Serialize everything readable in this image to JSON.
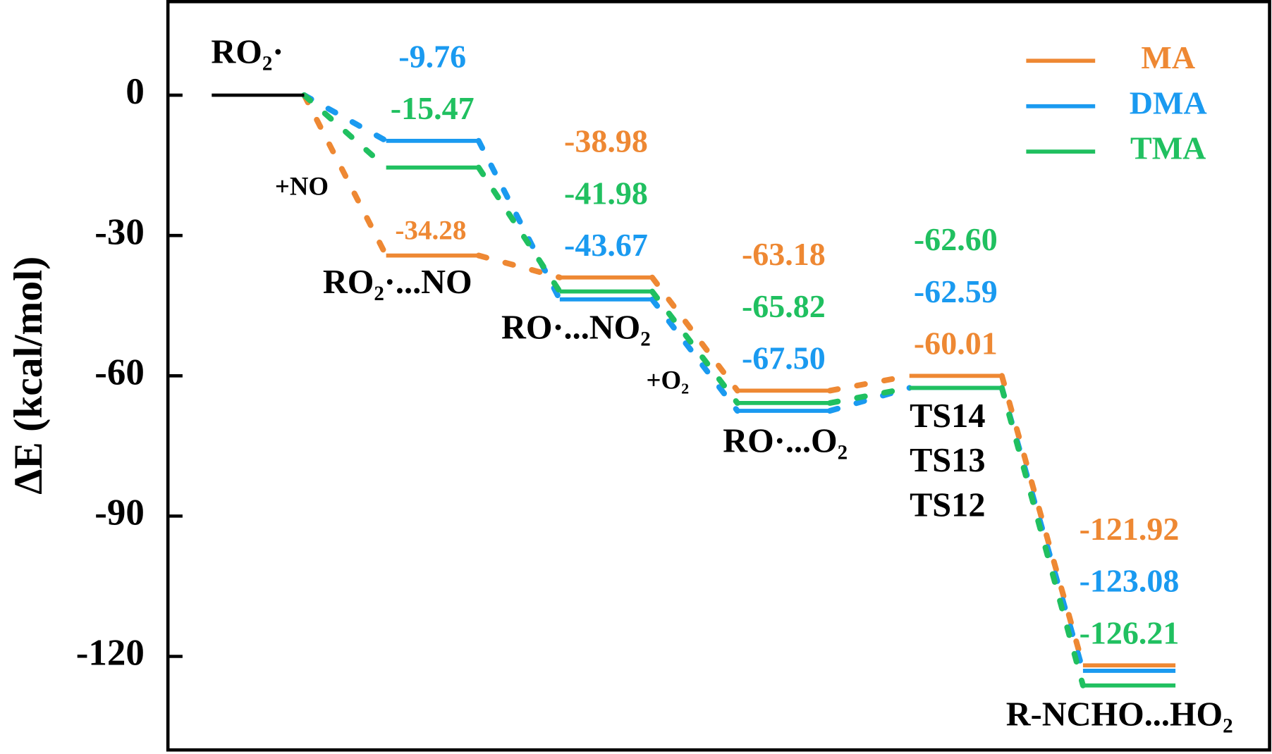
{
  "chart_data": {
    "type": "energy-diagram",
    "ylabel": "ΔE (kcal/mol)",
    "ylim": [
      -140,
      20
    ],
    "yticks": [
      0,
      -30,
      -60,
      -90,
      -120
    ],
    "categories": [
      "RO₂·",
      "RO₂·...NO",
      "RO·...NO₂",
      "RO·...O₂",
      null,
      "R-NCHO...HO₂"
    ],
    "ts_labels": [
      "TS14",
      "TS13",
      "TS12"
    ],
    "annotations": [
      "+NO",
      "+O₂"
    ],
    "legend": "upper right",
    "series": [
      {
        "name": "MA",
        "color": "#ee8833",
        "values": [
          0,
          -34.28,
          -38.98,
          -63.18,
          -60.01,
          -121.92
        ],
        "value_labels": [
          null,
          "-34.28",
          "-38.98",
          "-63.18",
          "-60.01",
          "-121.92"
        ]
      },
      {
        "name": "DMA",
        "color": "#1a9af0",
        "values": [
          0,
          -9.76,
          -43.67,
          -67.5,
          -62.59,
          -123.08
        ],
        "value_labels": [
          null,
          "-9.76",
          "-43.67",
          "-67.50",
          "-62.59",
          "-123.08"
        ]
      },
      {
        "name": "TMA",
        "color": "#20c060",
        "values": [
          0,
          -15.47,
          -41.98,
          -65.82,
          -62.6,
          -126.21
        ],
        "value_labels": [
          null,
          "-15.47",
          "-41.98",
          "-65.82",
          "-62.60",
          "-126.21"
        ]
      }
    ]
  }
}
